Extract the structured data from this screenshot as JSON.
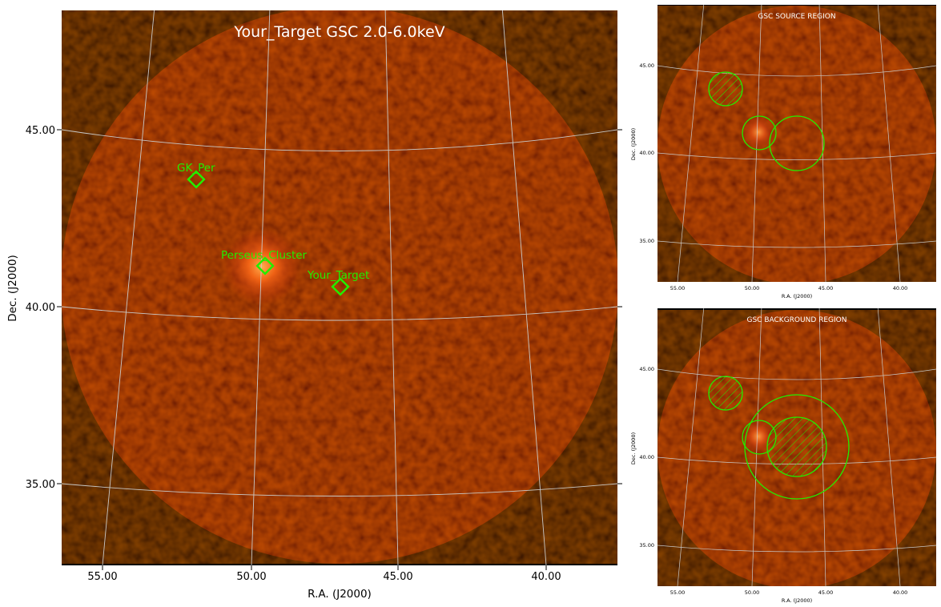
{
  "main_panel": {
    "title": "Your_Target GSC 2.0-6.0keV",
    "xlabel": "R.A. (J2000)",
    "ylabel": "Dec. (J2000)",
    "x_ticks": [
      "55.00",
      "50.00",
      "45.00",
      "40.00"
    ],
    "y_ticks": [
      "45.00",
      "40.00",
      "35.00"
    ],
    "sources": [
      {
        "label": "GK_Per"
      },
      {
        "label": "Perseus_Cluster"
      },
      {
        "label": "Your_Target"
      }
    ]
  },
  "source_panel": {
    "title": "GSC SOURCE REGION",
    "xlabel": "R.A. (J2000)",
    "ylabel": "Dec. (J2000)",
    "x_ticks": [
      "55.00",
      "50.00",
      "45.00",
      "40.00"
    ],
    "y_ticks": [
      "45.00",
      "40.00",
      "35.00"
    ]
  },
  "background_panel": {
    "title": "GSC BACKGROUND REGION",
    "xlabel": "R.A. (J2000)",
    "ylabel": "Dec. (J2000)",
    "x_ticks": [
      "55.00",
      "50.00",
      "45.00",
      "40.00"
    ],
    "y_ticks": [
      "45.00",
      "40.00",
      "35.00"
    ]
  },
  "colors": {
    "marker": "#22ee00",
    "disk": "#8a1606",
    "cluster_glow": "#ff7a20",
    "grid": "#c8c8c8",
    "frame_bg": "#000000"
  }
}
